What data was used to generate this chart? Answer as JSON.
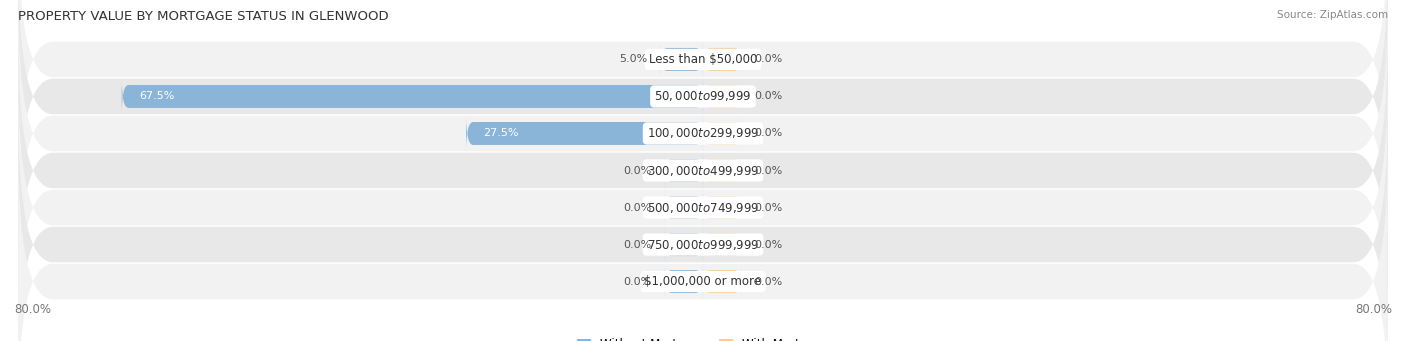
{
  "title": "PROPERTY VALUE BY MORTGAGE STATUS IN GLENWOOD",
  "source": "Source: ZipAtlas.com",
  "categories": [
    "Less than $50,000",
    "$50,000 to $99,999",
    "$100,000 to $299,999",
    "$300,000 to $499,999",
    "$500,000 to $749,999",
    "$750,000 to $999,999",
    "$1,000,000 or more"
  ],
  "without_mortgage": [
    5.0,
    67.5,
    27.5,
    0.0,
    0.0,
    0.0,
    0.0
  ],
  "with_mortgage": [
    0.0,
    0.0,
    0.0,
    0.0,
    0.0,
    0.0,
    0.0
  ],
  "without_mortgage_color": "#8ab4d8",
  "with_mortgage_color": "#f5cc9a",
  "row_colors": [
    "#f2f2f2",
    "#e8e8e8"
  ],
  "zero_bar_width": 4.5,
  "xlim": [
    -80,
    80
  ],
  "bar_height": 0.62,
  "label_fontsize": 8.5,
  "title_fontsize": 9.5,
  "source_fontsize": 7.5,
  "legend_fontsize": 8.5,
  "category_fontsize": 8.5,
  "value_fontsize": 8.0,
  "row_rounding": 6
}
